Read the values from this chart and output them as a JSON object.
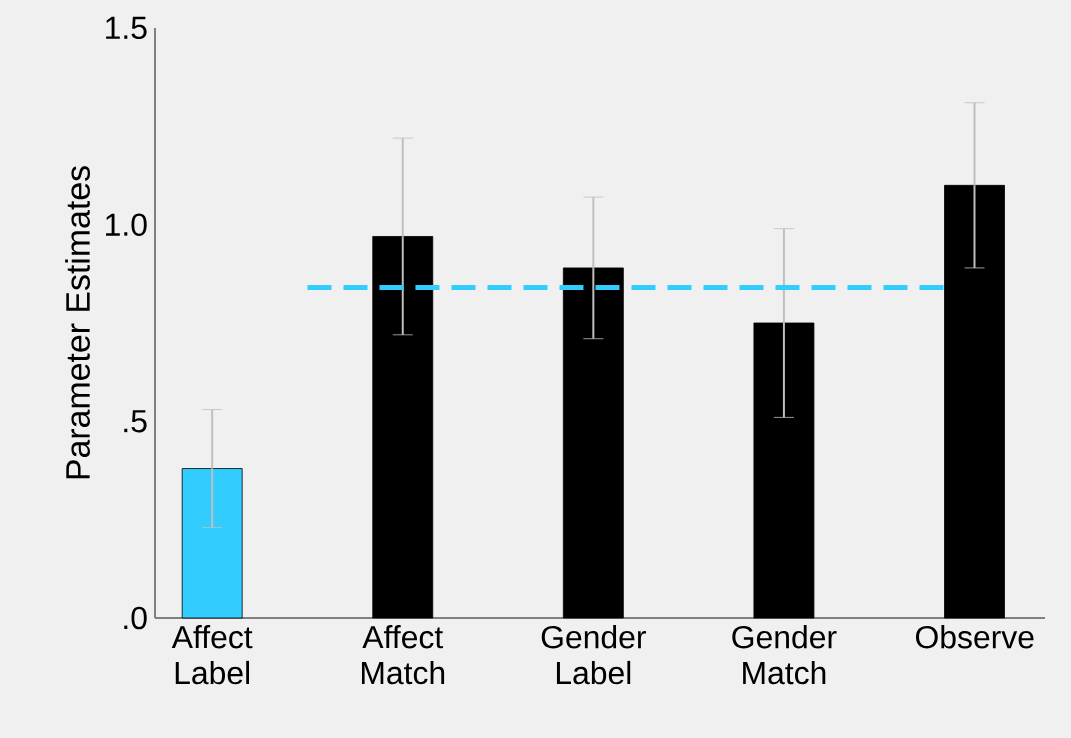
{
  "chart_data": {
    "type": "bar",
    "ylabel": "Parameter Estimates",
    "categories": [
      "Affect Label",
      "Affect Match",
      "Gender Label",
      "Gender Match",
      "Observe"
    ],
    "values": [
      0.38,
      0.97,
      0.89,
      0.75,
      1.1
    ],
    "errors": [
      0.15,
      0.25,
      0.18,
      0.24,
      0.21
    ],
    "colors": [
      "#33ccff",
      "#000000",
      "#000000",
      "#000000",
      "#000000"
    ],
    "ylim": [
      0,
      1.5
    ],
    "yticks": [
      {
        "value": 0,
        "label": ".0"
      },
      {
        "value": 0.5,
        "label": ".5"
      },
      {
        "value": 1,
        "label": "1.0"
      },
      {
        "value": 1.5,
        "label": "1.5"
      }
    ],
    "ref_lines": [
      {
        "axis": "y",
        "value": 0.84,
        "color": "#33ccff",
        "line_style": "dashed"
      }
    ],
    "grid": false
  }
}
